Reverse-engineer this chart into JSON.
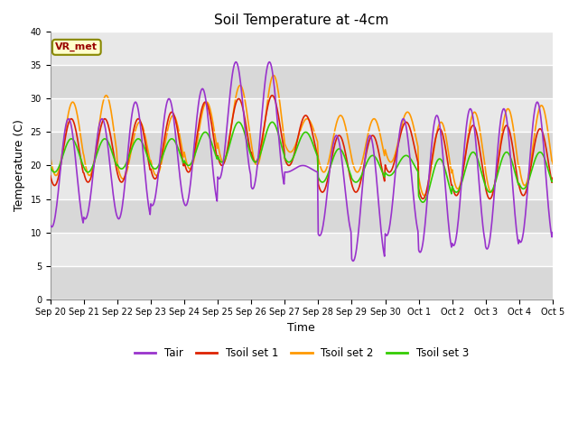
{
  "title": "Soil Temperature at -4cm",
  "xlabel": "Time",
  "ylabel": "Temperature (C)",
  "ylim": [
    0,
    40
  ],
  "yticks": [
    0,
    5,
    10,
    15,
    20,
    25,
    30,
    35,
    40
  ],
  "annotation": "VR_met",
  "fig_facecolor": "#ffffff",
  "plot_bg_color": "#e8e8e8",
  "series_colors": {
    "Tair": "#9933cc",
    "Tsoil set 1": "#dd2200",
    "Tsoil set 2": "#ff9900",
    "Tsoil set 3": "#33cc00"
  },
  "lw": 1.2,
  "xtick_labels": [
    "Sep 20",
    "Sep 21",
    "Sep 22",
    "Sep 23",
    "Sep 24",
    "Sep 25",
    "Sep 26",
    "Sep 27",
    "Sep 28",
    "Sep 29",
    "Sep 30",
    "Oct 1",
    "Oct 2",
    "Oct 3",
    "Oct 4",
    "Oct 5"
  ],
  "n_days": 16,
  "pts_per_day": 48,
  "tair_peaks": [
    27.0,
    27.0,
    29.5,
    30.0,
    31.5,
    35.5,
    35.5,
    20.0,
    24.5,
    24.5,
    27.0,
    27.5,
    28.5,
    28.5,
    29.5,
    10.5
  ],
  "tair_troughs": [
    10.8,
    12.0,
    12.0,
    14.0,
    14.0,
    18.0,
    16.5,
    19.0,
    9.5,
    5.7,
    9.5,
    7.0,
    8.0,
    7.5,
    8.5,
    10.0
  ],
  "ts1_peaks": [
    27.0,
    27.0,
    27.0,
    28.0,
    29.5,
    30.0,
    30.5,
    27.5,
    24.5,
    24.5,
    26.5,
    25.5,
    26.0,
    26.0,
    25.5,
    25.0
  ],
  "ts1_troughs": [
    17.0,
    17.5,
    17.5,
    18.0,
    19.0,
    20.0,
    20.5,
    20.0,
    16.0,
    16.0,
    19.0,
    15.0,
    15.5,
    15.0,
    15.5,
    17.0
  ],
  "ts2_peaks": [
    29.5,
    30.5,
    26.5,
    27.5,
    29.5,
    32.0,
    33.5,
    27.0,
    27.5,
    27.0,
    28.0,
    26.5,
    28.0,
    28.5,
    29.0,
    29.5
  ],
  "ts2_troughs": [
    18.5,
    18.5,
    18.0,
    18.5,
    19.5,
    20.5,
    20.0,
    22.0,
    19.0,
    19.0,
    20.5,
    15.5,
    16.5,
    16.0,
    17.0,
    17.5
  ],
  "ts3_peaks": [
    24.0,
    24.0,
    24.0,
    24.0,
    25.0,
    26.5,
    26.5,
    25.0,
    22.5,
    21.5,
    21.5,
    21.0,
    22.0,
    22.0,
    22.0,
    22.0
  ],
  "ts3_troughs": [
    19.0,
    19.0,
    19.5,
    19.5,
    20.0,
    20.5,
    20.5,
    20.5,
    17.5,
    17.5,
    18.5,
    14.5,
    16.0,
    16.0,
    16.5,
    17.0
  ],
  "tair_peak_hour": 13,
  "ts_peak_hour": 15,
  "trough_hour": 5
}
